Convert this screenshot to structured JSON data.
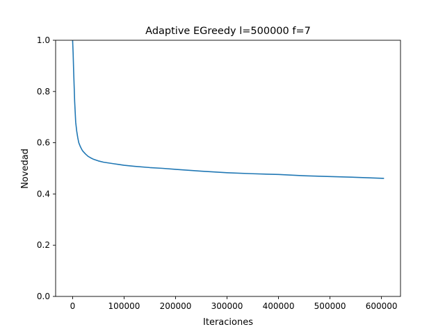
{
  "chart_data": {
    "type": "line",
    "title": "Adaptive EGreedy l=500000 f=7",
    "xlabel": "Iteraciones",
    "ylabel": "Novedad",
    "xlim": [
      -33000,
      637000
    ],
    "ylim": [
      0.0,
      1.0
    ],
    "xticks": [
      0,
      100000,
      200000,
      300000,
      400000,
      500000,
      600000
    ],
    "xtick_labels": [
      "0",
      "100000",
      "200000",
      "300000",
      "400000",
      "500000",
      "600000"
    ],
    "yticks": [
      0.0,
      0.2,
      0.4,
      0.6,
      0.8,
      1.0
    ],
    "ytick_labels": [
      "0.0",
      "0.2",
      "0.4",
      "0.6",
      "0.8",
      "1.0"
    ],
    "grid": false,
    "legend": "none",
    "color": "#1f77b4",
    "series": [
      {
        "x": [
          0,
          1000,
          2000,
          3000,
          4000,
          5000,
          6000,
          8000,
          10000,
          12000,
          15000,
          18000,
          20000,
          25000,
          30000,
          35000,
          40000,
          50000,
          60000,
          70000,
          80000,
          90000,
          100000,
          120000,
          150000,
          175000,
          200000,
          250000,
          300000,
          350000,
          400000,
          450000,
          500000,
          550000,
          605000
        ],
        "y": [
          1.0,
          0.95,
          0.88,
          0.82,
          0.76,
          0.72,
          0.68,
          0.645,
          0.62,
          0.6,
          0.585,
          0.573,
          0.567,
          0.556,
          0.547,
          0.541,
          0.536,
          0.529,
          0.524,
          0.521,
          0.518,
          0.515,
          0.512,
          0.508,
          0.503,
          0.5,
          0.496,
          0.489,
          0.483,
          0.479,
          0.476,
          0.471,
          0.468,
          0.465,
          0.461
        ]
      }
    ]
  }
}
